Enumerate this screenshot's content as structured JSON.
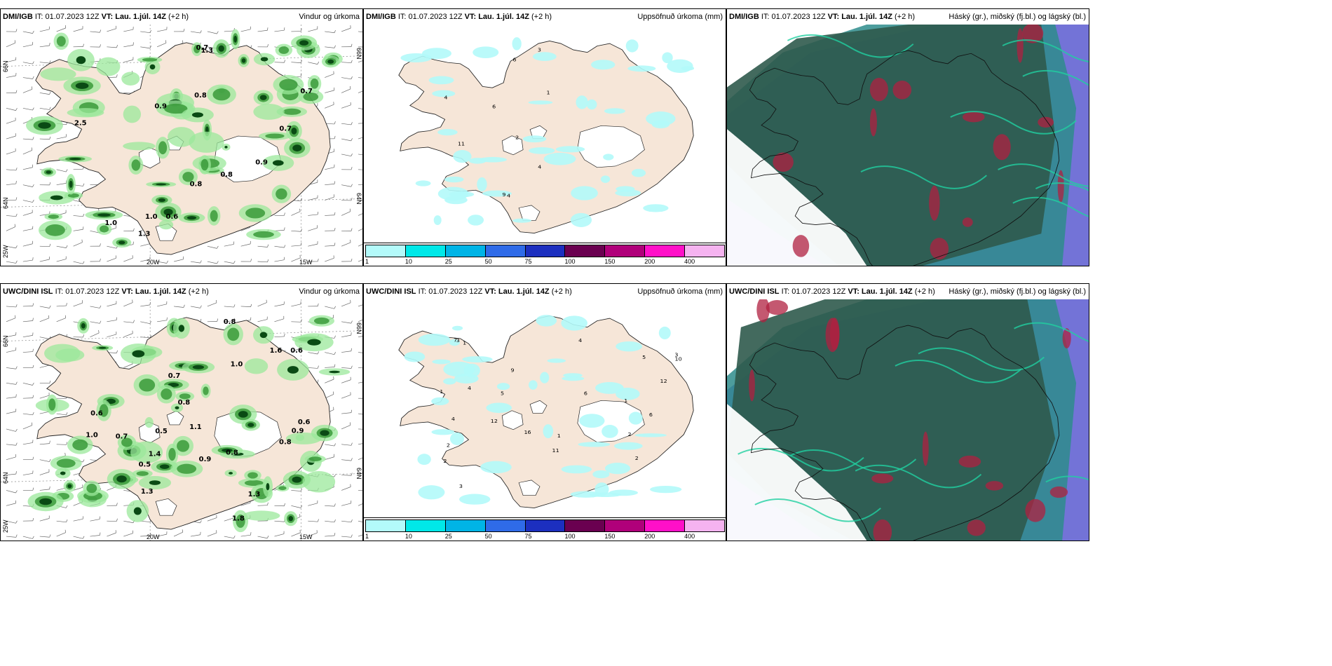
{
  "panels": [
    {
      "model": "DMI/IGB",
      "it": "IT: 01.07.2023 12Z",
      "vt": "VT: Lau. 1.júl. 14Z",
      "lead": "(+2 h)",
      "title": "Vindur og úrkoma",
      "kind": "wind"
    },
    {
      "model": "DMI/IGB",
      "it": "IT: 01.07.2023 12Z",
      "vt": "VT: Lau. 1.júl. 14Z",
      "lead": "(+2 h)",
      "title": "Uppsöfnuð úrkoma (mm)",
      "kind": "accum"
    },
    {
      "model": "DMI/IGB",
      "it": "IT: 01.07.2023 12Z",
      "vt": "VT: Lau. 1.júl. 14Z",
      "lead": "(+2 h)",
      "title": "Háský (gr.), miðský (fj.bl.) og lágský (bl.)",
      "kind": "cloud"
    },
    {
      "model": "UWC/DINI ISL",
      "it": "IT: 01.07.2023 12Z",
      "vt": "VT: Lau. 1.júl. 14Z",
      "lead": "(+2 h)",
      "title": "Vindur og úrkoma",
      "kind": "wind"
    },
    {
      "model": "UWC/DINI ISL",
      "it": "IT: 01.07.2023 12Z",
      "vt": "VT: Lau. 1.júl. 14Z",
      "lead": "(+2 h)",
      "title": "Uppsöfnuð úrkoma (mm)",
      "kind": "accum"
    },
    {
      "model": "UWC/DINI ISL",
      "it": "IT: 01.07.2023 12Z",
      "vt": "VT: Lau. 1.júl. 14Z",
      "lead": "(+2 h)",
      "title": "Háský (gr.), miðský (fj.bl.) og lágský (bl.)",
      "kind": "cloud"
    }
  ],
  "grid_labels": {
    "lon_20w": "20W",
    "lon_15w": "15W",
    "lat_66n": "66N",
    "lat_64n": "64N",
    "lat_25w": "25W",
    "lat_66n_right": "66N",
    "lat_64n_right": "64N"
  },
  "colorbar": {
    "colors": [
      "#b3fafa",
      "#00e8e8",
      "#00b4e6",
      "#2f6be8",
      "#1c2fbf",
      "#6a0050",
      "#b0007a",
      "#ff10c8",
      "#f5b3f0"
    ],
    "ticks": [
      "1",
      "10",
      "25",
      "50",
      "75",
      "100",
      "150",
      "200",
      "400"
    ]
  },
  "colors": {
    "land": "#f6e6d8",
    "wet_light": "#9be89b",
    "wet_mid": "#3a9a3a",
    "wet_dark": "#0a4a14",
    "ice": "#ffffff",
    "accum": "#b3fafa"
  },
  "precip_labels_top": [
    "0.6",
    "0.8",
    "1.3",
    "0.7",
    "0.8",
    "0.8",
    "0.9",
    "0.9",
    "0.7",
    "1.0",
    "0.7",
    "1.3",
    "2.5",
    "1.0"
  ],
  "precip_labels_bottom": [
    "0.6",
    "0.6",
    "0.7",
    "1.1",
    "0.8",
    "0.6",
    "0.8",
    "1.0",
    "0.5",
    "1.0",
    "0.7",
    "0.8",
    "0.9",
    "1.3",
    "1.6",
    "1.8",
    "1.4",
    "0.9",
    "1.3",
    "0.8",
    "0.5"
  ],
  "accum_labels_top": [
    "2",
    "3",
    "4",
    "4",
    "6",
    "4",
    "9",
    "11",
    "1",
    "6"
  ],
  "accum_labels_bottom": [
    "3",
    "2",
    "1",
    "1",
    "2",
    "1",
    "2",
    "3",
    "4",
    "5",
    "6",
    "11",
    "9",
    "7",
    "4",
    "12",
    "10",
    "12",
    "16",
    "5",
    "3",
    "2",
    "1",
    "4",
    "6"
  ]
}
